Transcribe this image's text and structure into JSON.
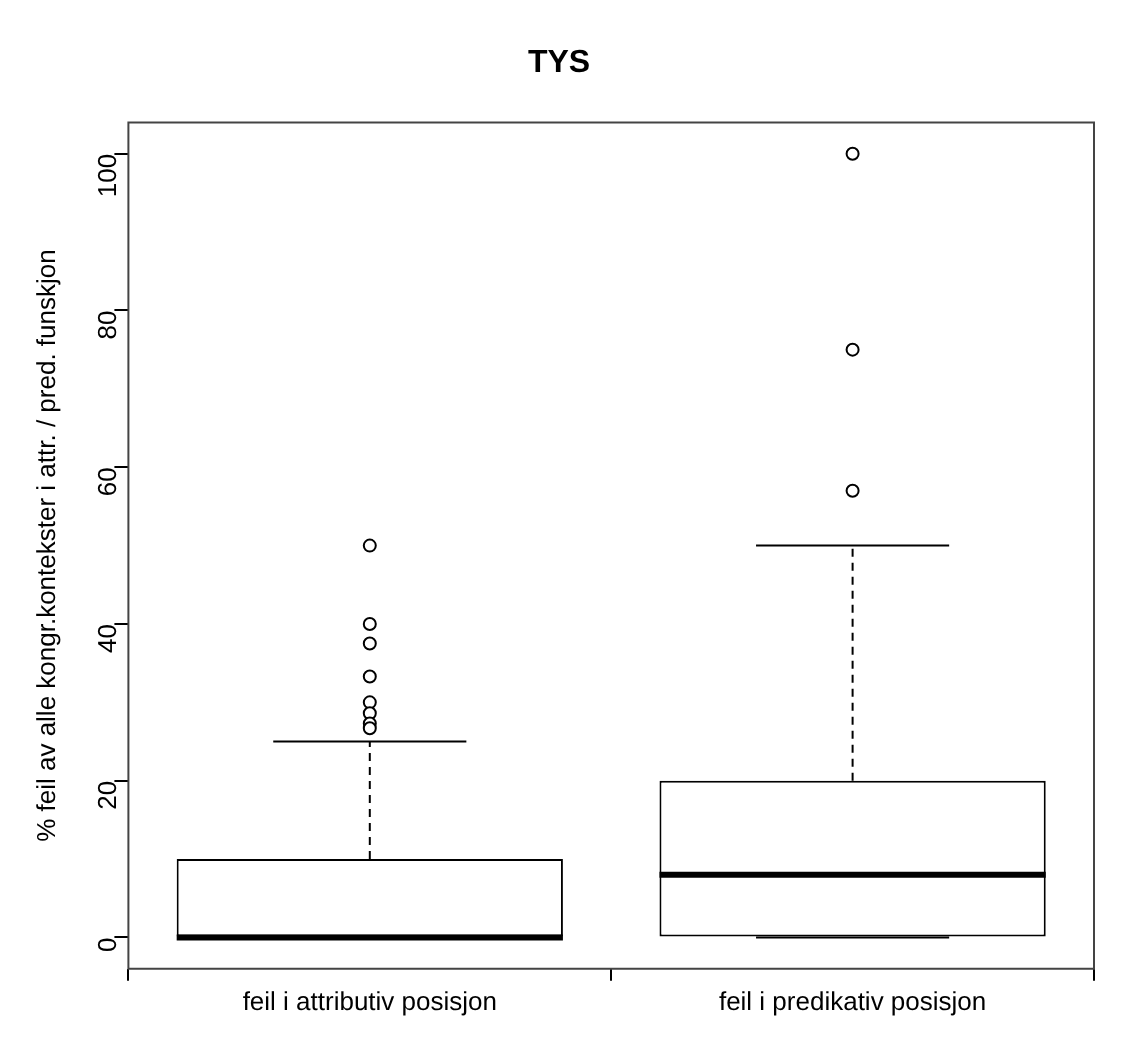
{
  "chart_data": {
    "type": "box",
    "title": "TYS",
    "ylabel": "% feil av alle kongr.kontekster i attr. / pred. funskjon",
    "categories": [
      "feil i attributiv posisjon",
      "feil i predikativ posisjon"
    ],
    "boxes": [
      {
        "low": 0,
        "q1": 0,
        "median": 0,
        "q3": 10,
        "high": 25,
        "outliers": [
          50,
          40,
          37.5,
          33.3,
          30,
          28.6,
          27.3,
          26.7
        ]
      },
      {
        "low": 0,
        "q1": 0,
        "median": 8,
        "q3": 20,
        "high": 50,
        "outliers": [
          100,
          75,
          57
        ]
      }
    ],
    "ylim": [
      -4,
      104
    ],
    "yticks": [
      0,
      20,
      40,
      60,
      80,
      100
    ],
    "grid": false,
    "marker": "circle"
  }
}
